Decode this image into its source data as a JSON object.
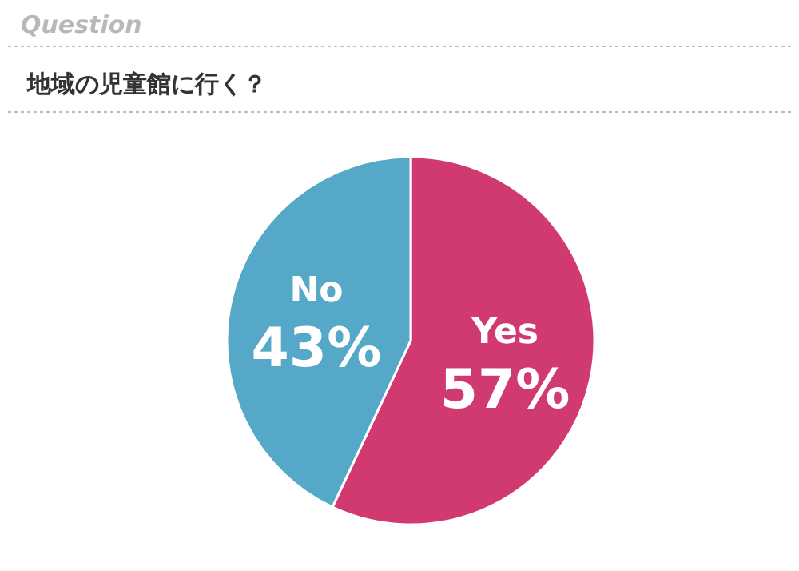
{
  "chart_data": {
    "type": "pie",
    "subtitle": "Question",
    "title": "地域の児童館に行く？",
    "categories": [
      "Yes",
      "No"
    ],
    "values": [
      57,
      43
    ],
    "colors": [
      "#d03a70",
      "#55a8c8"
    ],
    "value_labels": [
      "57%",
      "43%"
    ],
    "legend": false
  }
}
